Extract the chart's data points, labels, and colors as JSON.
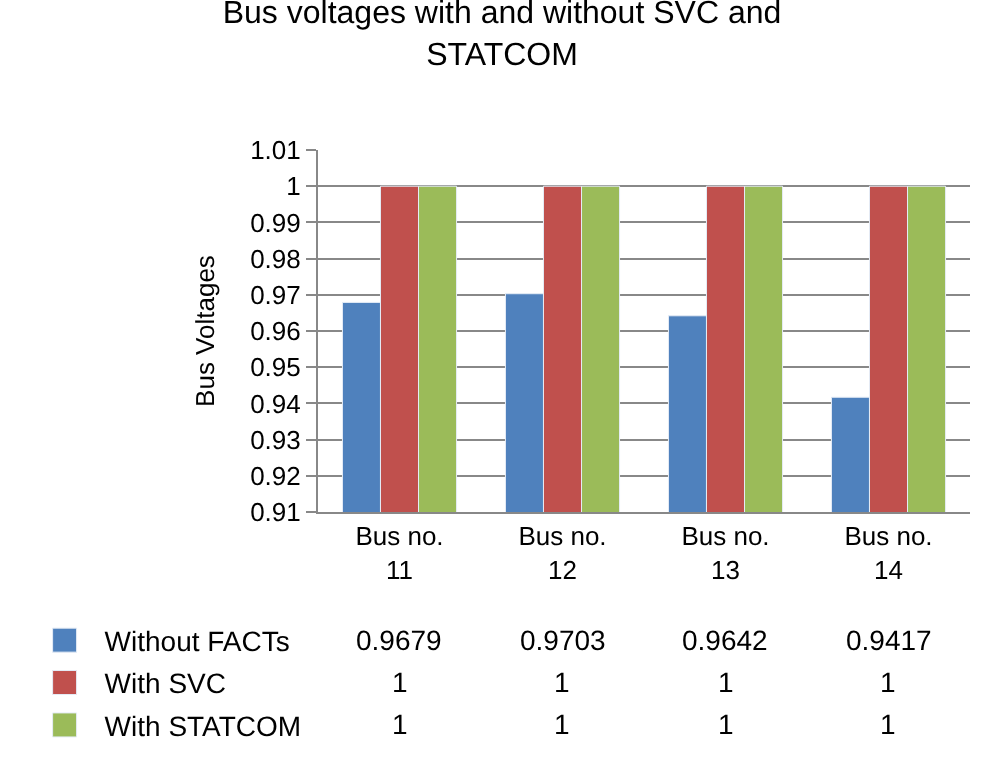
{
  "chart_data": {
    "type": "bar",
    "title": "Bus voltages with and without SVC and STATCOM",
    "ylabel": "Bus Voltages",
    "categories": [
      "Bus no. 11",
      "Bus no. 12",
      "Bus no. 13",
      "Bus no. 14"
    ],
    "series": [
      {
        "name": "Without FACTs",
        "color": "#4f81bd",
        "values": [
          0.9679,
          0.9703,
          0.9642,
          0.9417
        ]
      },
      {
        "name": "With SVC",
        "color": "#c0504d",
        "values": [
          1,
          1,
          1,
          1
        ]
      },
      {
        "name": "With STATCOM",
        "color": "#9bbb59",
        "values": [
          1,
          1,
          1,
          1
        ]
      }
    ],
    "ylim": [
      0.91,
      1.01
    ],
    "yticks": [
      0.91,
      0.92,
      0.93,
      0.94,
      0.95,
      0.96,
      0.97,
      0.98,
      0.99,
      1,
      1.01
    ],
    "grid": "y",
    "legend": "bottom left",
    "data_labels": true
  }
}
